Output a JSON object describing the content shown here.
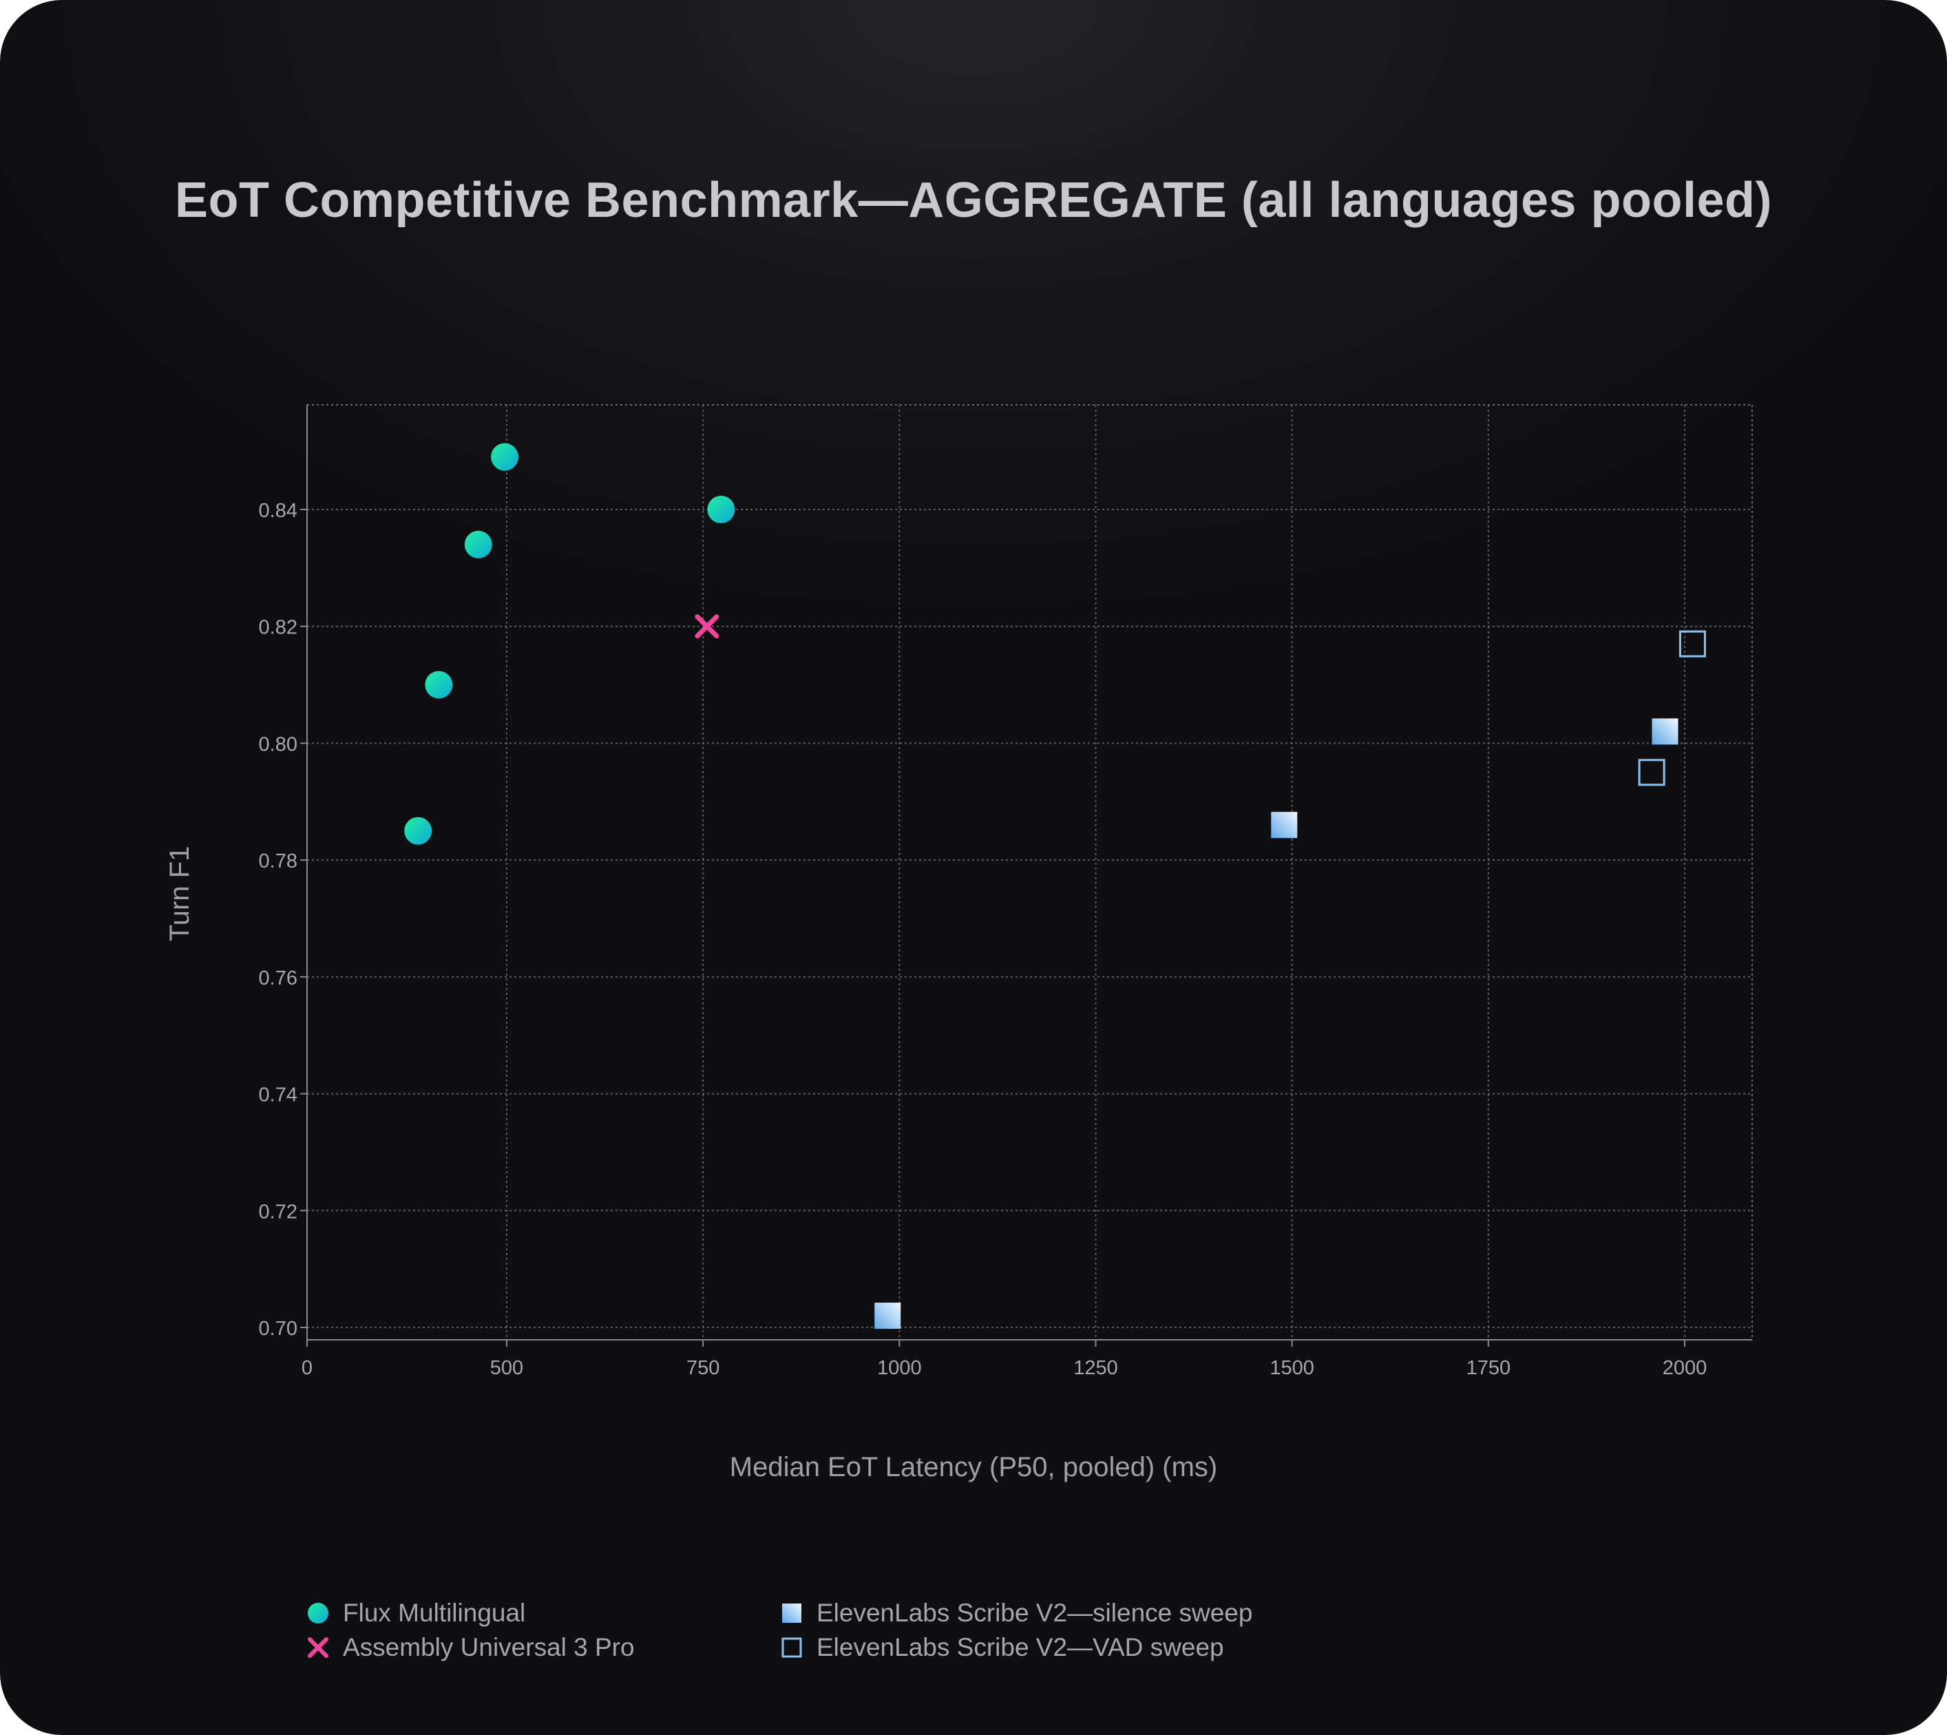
{
  "chart_data": {
    "type": "scatter",
    "title": "EoT Competitive Benchmark—AGGREGATE (all languages pooled)",
    "xlabel": "Median EoT Latency (P50, pooled) (ms)",
    "ylabel": "Turn F1",
    "xlim": [
      0,
      2085
    ],
    "ylim": [
      0.698,
      0.858
    ],
    "xticks": [
      0,
      500,
      750,
      1000,
      1250,
      1500,
      1750,
      2000
    ],
    "yticks": [
      0.7,
      0.72,
      0.74,
      0.76,
      0.78,
      0.8,
      0.82,
      0.84
    ],
    "grid": true,
    "legend_position": "bottom",
    "series": [
      {
        "name": "Flux Multilingual",
        "marker": "circle",
        "colors": [
          "#1de9a6",
          "#12b5d6"
        ],
        "points": [
          {
            "x": 278,
            "y": 0.785
          },
          {
            "x": 330,
            "y": 0.81
          },
          {
            "x": 429,
            "y": 0.834
          },
          {
            "x": 495,
            "y": 0.849
          },
          {
            "x": 773,
            "y": 0.84
          }
        ]
      },
      {
        "name": "Assembly Universal 3 Pro",
        "marker": "x",
        "colors": [
          "#f0459a"
        ],
        "points": [
          {
            "x": 755,
            "y": 0.82
          }
        ]
      },
      {
        "name": "ElevenLabs Scribe V2—silence sweep",
        "marker": "square-filled",
        "colors": [
          "#6fb2ec",
          "#eaf4fd"
        ],
        "points": [
          {
            "x": 985,
            "y": 0.702
          },
          {
            "x": 1490,
            "y": 0.786
          },
          {
            "x": 1975,
            "y": 0.802
          }
        ]
      },
      {
        "name": "ElevenLabs Scribe V2—VAD sweep",
        "marker": "square-open",
        "colors": [
          "#8cc2ee"
        ],
        "points": [
          {
            "x": 1958,
            "y": 0.795
          },
          {
            "x": 2010,
            "y": 0.817
          }
        ]
      }
    ]
  }
}
